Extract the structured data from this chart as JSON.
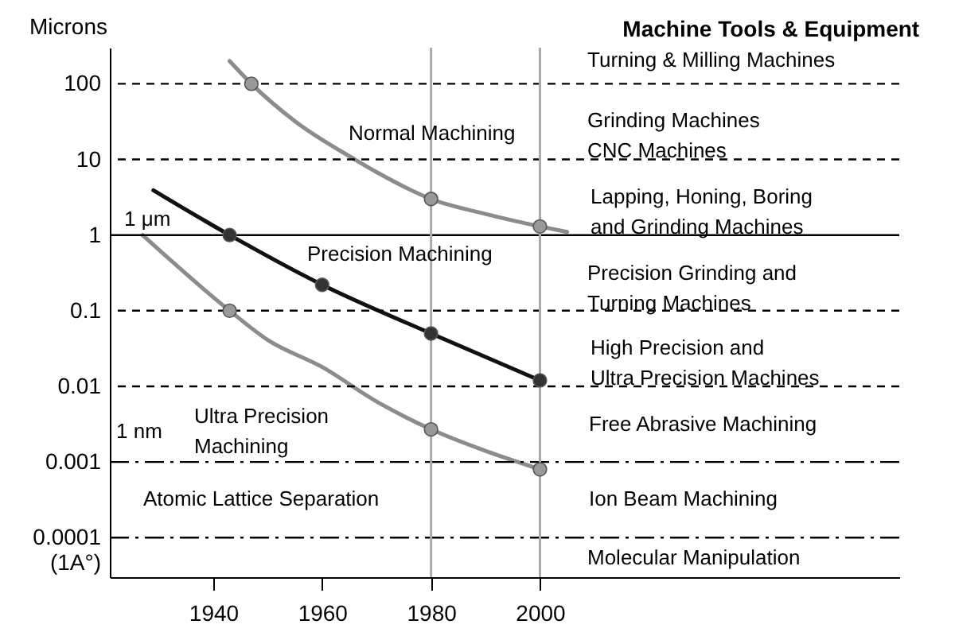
{
  "chart_data": {
    "type": "line",
    "title": "Machine Tools & Equipment",
    "ylabel": "Microns",
    "log": "y",
    "xlim": [
      1921,
      2066
    ],
    "xticks": [
      1940,
      1960,
      1980,
      2000
    ],
    "ylim": [
      3e-05,
      300
    ],
    "yticks": [
      100,
      10,
      1,
      0.1,
      0.01,
      0.001,
      {
        "value": 0.0001,
        "label": "0.0001\n(1A°)"
      }
    ],
    "series": [
      {
        "color": "#8c8c8c",
        "x": [
          1943,
          1947,
          1955,
          1966,
          1970,
          1980,
          1990,
          2000,
          2005
        ],
        "values": [
          200,
          100,
          32,
          10,
          6.8,
          3,
          1.9,
          1.3,
          1.1
        ]
      },
      {
        "color": "#111111",
        "x": [
          1929,
          1943,
          1960,
          1980,
          2000
        ],
        "values": [
          3.9,
          1,
          0.22,
          0.05,
          0.012
        ]
      },
      {
        "color": "#8c8c8c",
        "x": [
          1927,
          1943,
          1950,
          1960,
          1970,
          1980,
          1990,
          2000
        ],
        "values": [
          1,
          0.1,
          0.041,
          0.018,
          0.0063,
          0.0027,
          0.0014,
          0.0008
        ]
      },
      {
        "type": "scatter",
        "marker": "circle",
        "color": "#999999",
        "x": [
          1947,
          1980,
          2000
        ],
        "values": [
          100,
          3,
          1.3
        ]
      },
      {
        "type": "scatter",
        "marker": "circle",
        "color": "#333333",
        "x": [
          1943,
          1960,
          1980,
          2000
        ],
        "values": [
          1,
          0.22,
          0.05,
          0.012
        ]
      },
      {
        "type": "scatter",
        "marker": "circle",
        "color": "#999999",
        "x": [
          1943,
          1980,
          2000
        ],
        "values": [
          0.1,
          0.0027,
          0.0008
        ]
      }
    ],
    "ref_lines": [
      {
        "axis": "y",
        "value": 100,
        "line_style": "dashed",
        "color": "#000000"
      },
      {
        "axis": "y",
        "value": 10,
        "line_style": "dashed",
        "color": "#000000"
      },
      {
        "axis": "y",
        "value": 1,
        "line_style": "solid",
        "color": "#000000"
      },
      {
        "axis": "y",
        "value": 0.1,
        "line_style": "dashed",
        "color": "#000000"
      },
      {
        "axis": "y",
        "value": 0.01,
        "line_style": "dashed",
        "color": "#000000"
      },
      {
        "axis": "y",
        "value": 0.001,
        "line_style": "dashdot",
        "color": "#000000"
      },
      {
        "axis": "y",
        "value": 0.0001,
        "line_style": "dashdot",
        "color": "#000000"
      },
      {
        "axis": "x",
        "value": 1980,
        "line_style": "solid",
        "color": "#aaaaaa"
      },
      {
        "axis": "x",
        "value": 2000,
        "line_style": "solid",
        "color": "#aaaaaa"
      }
    ],
    "annotations": [
      "Normal Machining",
      "Precision Machining",
      "Ultra Precision\nMachining",
      "1 μm",
      "1 nm",
      "Atomic Lattice Separation",
      "Turning & Milling Machines",
      "Grinding Machines\nCNC Machines",
      "Lapping, Honing, Boring\nand Grinding Machines",
      "Precision Grinding and\nTurning Machines",
      "High Precision and\nUltra Precision Machines",
      "Free Abrasive Machining",
      "Ion Beam Machining",
      "Molecular Manipulation"
    ]
  }
}
